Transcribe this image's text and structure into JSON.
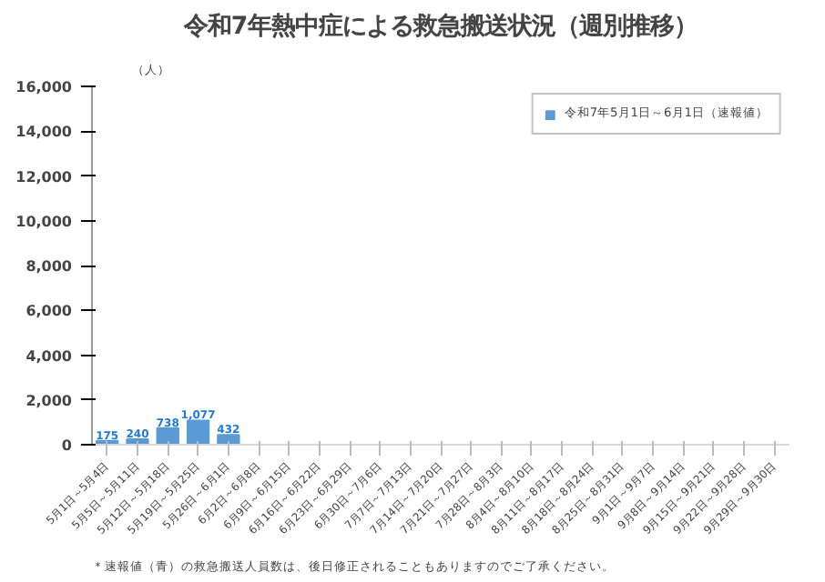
{
  "chart_data": {
    "type": "bar",
    "title": "令和7年熱中症による救急搬送状況（週別推移）",
    "ylabel": "（人）",
    "categories": [
      "5月1日～5月4日",
      "5月5日～5月11日",
      "5月12日～5月18日",
      "5月19日～5月25日",
      "5月26日～6月1日",
      "6月2日～6月8日",
      "6月9日～6月15日",
      "6月16日～6月22日",
      "6月23日～6月29日",
      "6月30日～7月6日",
      "7月7日～7月13日",
      "7月14日～7月20日",
      "7月21日～7月27日",
      "7月28日～8月3日",
      "8月4日～8月10日",
      "8月11日～8月17日",
      "8月18日～8月24日",
      "8月25日～8月31日",
      "9月1日～9月7日",
      "9月8日～9月14日",
      "9月15日～9月21日",
      "9月22日～9月28日",
      "9月29日～9月30日"
    ],
    "series": [
      {
        "name": "令和7年5月1日～6月1日（速報値）",
        "color": "#5b9bd5",
        "values": [
          175,
          240,
          738,
          1077,
          432,
          null,
          null,
          null,
          null,
          null,
          null,
          null,
          null,
          null,
          null,
          null,
          null,
          null,
          null,
          null,
          null,
          null,
          null
        ],
        "value_labels": [
          "175",
          "240",
          "738",
          "1,077",
          "432",
          null,
          null,
          null,
          null,
          null,
          null,
          null,
          null,
          null,
          null,
          null,
          null,
          null,
          null,
          null,
          null,
          null,
          null
        ]
      }
    ],
    "ylim": [
      0,
      16000
    ],
    "yticks": [
      0,
      {
        "value": 2000,
        "label": "2,000"
      },
      {
        "value": 4000,
        "label": "4,000"
      },
      {
        "value": 6000,
        "label": "6,000"
      },
      {
        "value": 8000,
        "label": "8,000"
      },
      {
        "value": 10000,
        "label": "10,000"
      },
      {
        "value": 12000,
        "label": "12,000"
      },
      {
        "value": 14000,
        "label": "14,000"
      },
      {
        "value": 16000,
        "label": "16,000"
      }
    ],
    "grid": false,
    "legend": "top right",
    "annotations": [
      "＊速報値（青）の救急搬送人員数は、後日修正されることもありますのでご了承ください。"
    ]
  }
}
